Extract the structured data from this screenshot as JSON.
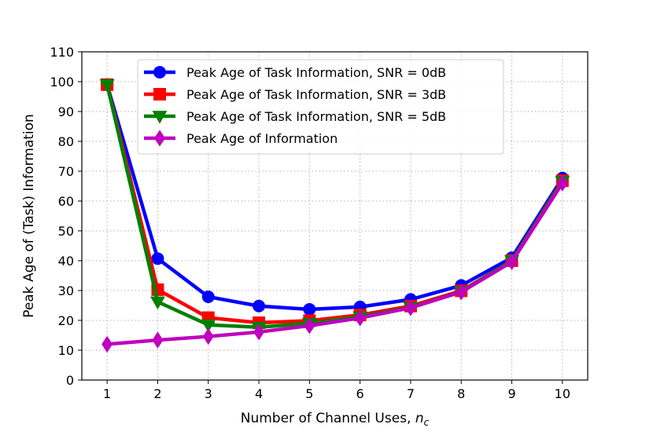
{
  "chart_data": {
    "type": "line",
    "title": "",
    "xlabel": "Number of Channel Uses, ",
    "xlabel_symbol": "n",
    "xlabel_subscript": "c",
    "ylabel": "Peak Age of (Task) Information",
    "x": [
      1,
      2,
      3,
      4,
      5,
      6,
      7,
      8,
      9,
      10
    ],
    "xlim": [
      0.5,
      10.5
    ],
    "ylim": [
      0,
      110
    ],
    "xticks": [
      "1",
      "2",
      "3",
      "4",
      "5",
      "6",
      "7",
      "8",
      "9",
      "10"
    ],
    "yticks": [
      "0",
      "10",
      "20",
      "30",
      "40",
      "50",
      "60",
      "70",
      "80",
      "90",
      "100",
      "110"
    ],
    "grid": true,
    "legend_position": "top-center",
    "series": [
      {
        "name": "Peak Age of Task Information, SNR = 0dB",
        "color": "#0000ff",
        "marker": "circle",
        "values": [
          99,
          40.7,
          27.9,
          24.8,
          23.7,
          24.5,
          27.0,
          31.7,
          41.0,
          67.7
        ]
      },
      {
        "name": "Peak Age of Task Information, SNR = 3dB",
        "color": "#ff0000",
        "marker": "square",
        "values": [
          99,
          30.3,
          20.9,
          19.2,
          19.9,
          21.8,
          24.8,
          29.9,
          40.0,
          66.8
        ]
      },
      {
        "name": "Peak Age of Task Information, SNR = 5dB",
        "color": "#008000",
        "marker": "triangle-down",
        "values": [
          99,
          26.2,
          18.5,
          17.7,
          19.0,
          21.2,
          24.3,
          29.6,
          40.0,
          66.5
        ]
      },
      {
        "name": "Peak Age of Information",
        "color": "#bf00bf",
        "marker": "diamond",
        "values": [
          12.0,
          13.4,
          14.6,
          16.1,
          18.2,
          20.8,
          24.2,
          29.5,
          39.6,
          66.0
        ]
      }
    ]
  }
}
